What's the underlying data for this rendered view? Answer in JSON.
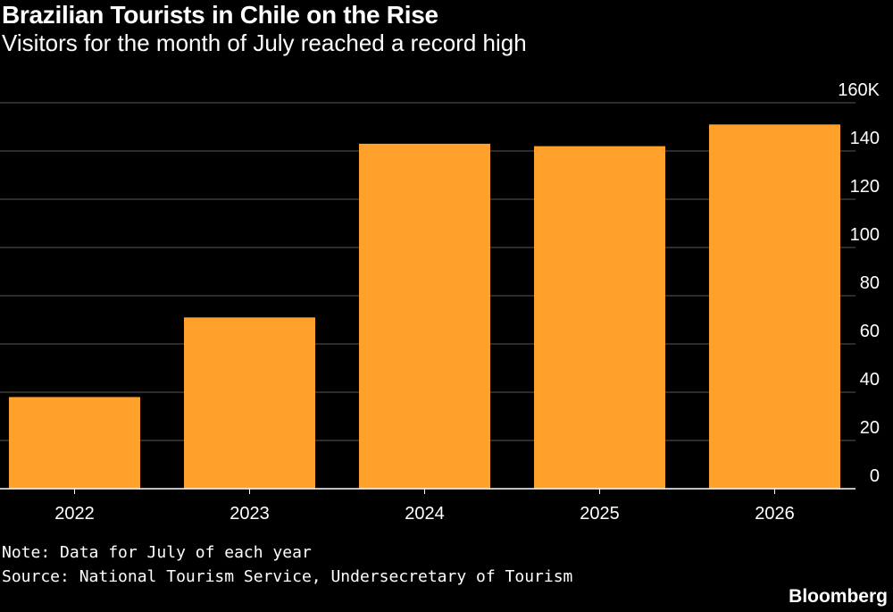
{
  "header": {
    "title": "Brazilian Tourists in Chile on the Rise",
    "subtitle": "Visitors for the month of July reached a record high"
  },
  "footer": {
    "note": "Note: Data for July of each year",
    "source": "Source: National Tourism Service, Undersecretary of Tourism",
    "brand": "Bloomberg"
  },
  "colors": {
    "background": "#000000",
    "bar": "#ffa12b",
    "grid": "#5a5a5a",
    "text": "#ffffff"
  },
  "chart_data": {
    "type": "bar",
    "title": "Brazilian Tourists in Chile on the Rise",
    "subtitle": "Visitors for the month of July reached a record high",
    "categories": [
      "2022",
      "2023",
      "2024",
      "2025",
      "2026"
    ],
    "values": [
      38,
      71,
      143,
      142,
      151
    ],
    "unit": "K",
    "ylim": [
      0,
      160
    ],
    "yticks": [
      0,
      20,
      40,
      60,
      80,
      100,
      120,
      140,
      160
    ],
    "ytick_labels": [
      "0",
      "20",
      "40",
      "60",
      "80",
      "100",
      "120",
      "140",
      "160K"
    ],
    "y_axis_position": "right",
    "grid": true,
    "legend": "none"
  }
}
